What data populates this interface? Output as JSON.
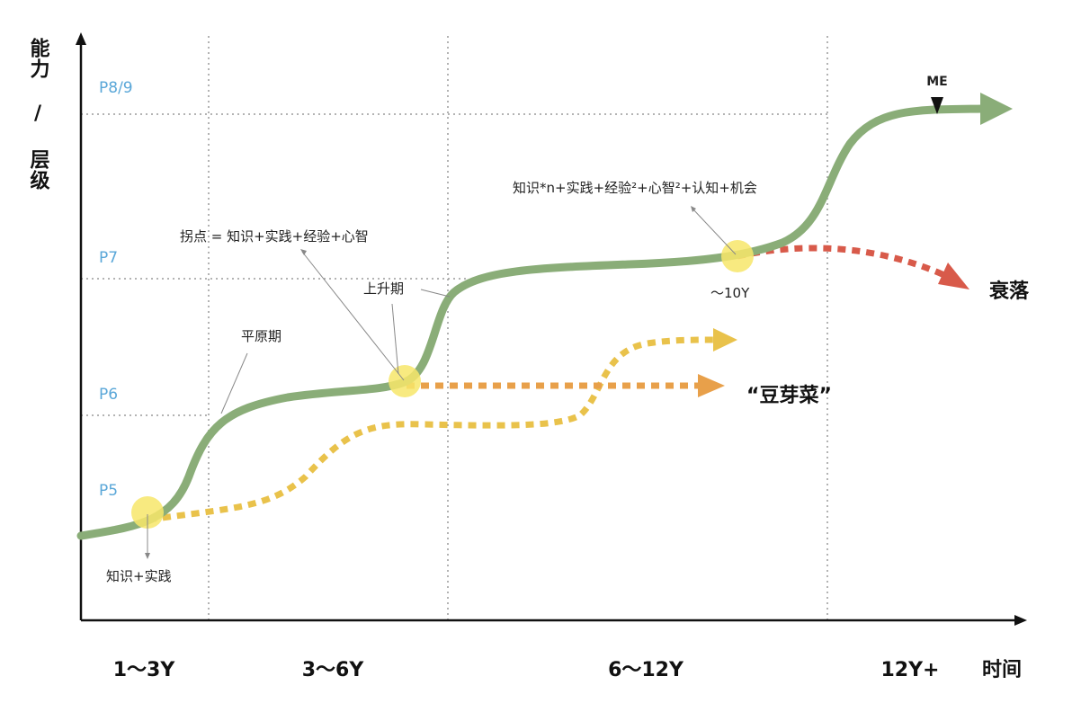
{
  "y_axis": {
    "title": "能力 / 层级",
    "levels": [
      "P8/9",
      "P7",
      "P6",
      "P5"
    ]
  },
  "x_axis": {
    "title": "时间",
    "periods": [
      "1～3Y",
      "3～6Y",
      "6～12Y",
      "12Y+"
    ]
  },
  "annotations": {
    "inflection_formula": "拐点 = 知识+实践+经验+心智",
    "plateau": "平原期",
    "rise": "上升期",
    "start_formula": "知识+实践",
    "late_formula": "知识*n+实践+经验²+心智²+认知+机会",
    "ten_years": "～10Y",
    "me": "ME",
    "decline": "衰落",
    "sprouts": "“豆芽菜”"
  },
  "colors": {
    "main_curve": "#8aad78",
    "decline_curve": "#d85a4a",
    "sprout_curve": "#e9c24b",
    "sprout_arrow": "#e8a04a",
    "highlight": "#f7e66a",
    "level_label": "#5aa7d8",
    "grid": "#9a9a9a"
  }
}
